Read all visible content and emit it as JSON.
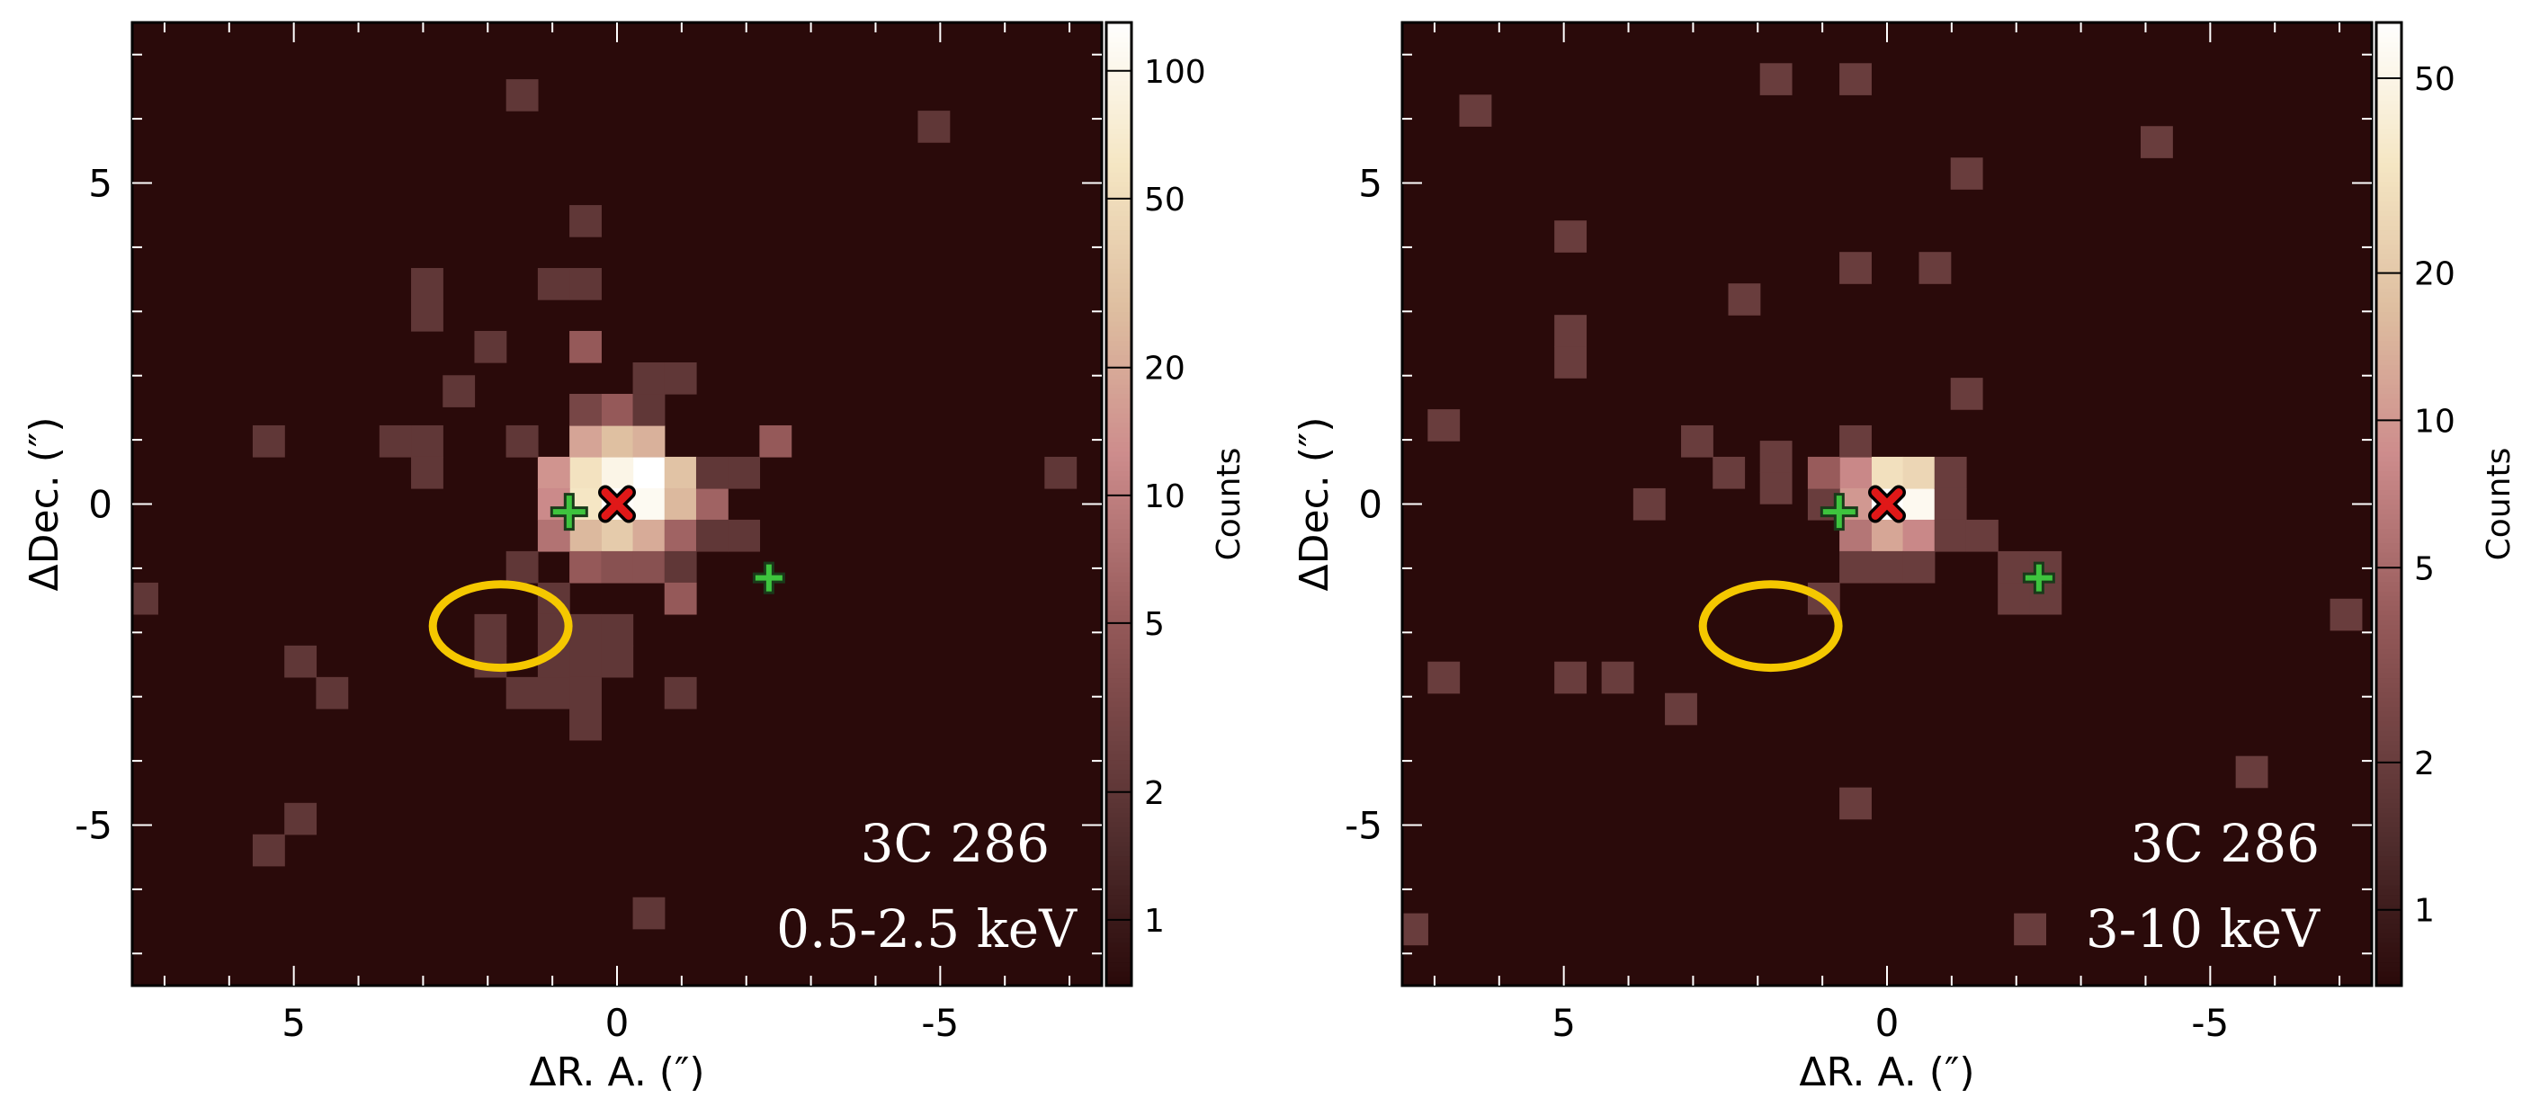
{
  "chart_data": [
    {
      "type": "heatmap",
      "title": "",
      "annotation": [
        "3C 286",
        "0.5-2.5 keV"
      ],
      "xlabel": "ΔR. A. (″)",
      "ylabel": "ΔDec. (″)",
      "xlim": [
        7.5,
        -7.5
      ],
      "ylim": [
        -7.5,
        7.5
      ],
      "xticks": [
        "5",
        "0",
        "-5"
      ],
      "yticks": [
        "5",
        "0",
        "-5"
      ],
      "pixel_size": 0.492,
      "colorbar": {
        "label": "Counts",
        "scale": "log",
        "ticks": [
          "1",
          "2",
          "5",
          "10",
          "20",
          "50",
          "100"
        ],
        "range": [
          0.7,
          130
        ]
      },
      "pixels": [
        [
          -0.49,
          0.49,
          130
        ],
        [
          0.0,
          0.49,
          95
        ],
        [
          -0.49,
          0.0,
          110
        ],
        [
          0.0,
          0.0,
          120
        ],
        [
          0.49,
          0.49,
          55
        ],
        [
          -0.98,
          0.49,
          30
        ],
        [
          0.49,
          0.0,
          60
        ],
        [
          -0.98,
          0.0,
          25
        ],
        [
          0.0,
          0.98,
          28
        ],
        [
          -0.49,
          0.98,
          22
        ],
        [
          0.49,
          0.98,
          18
        ],
        [
          0.98,
          0.49,
          14
        ],
        [
          0.0,
          -0.49,
          35
        ],
        [
          -0.49,
          -0.49,
          20
        ],
        [
          0.49,
          -0.49,
          25
        ],
        [
          0.98,
          0.0,
          12
        ],
        [
          -1.47,
          0.0,
          6
        ],
        [
          0.98,
          -0.49,
          8
        ],
        [
          -0.98,
          -0.49,
          6
        ],
        [
          0.49,
          -0.98,
          5
        ],
        [
          0.0,
          -0.98,
          4
        ],
        [
          -0.49,
          -0.98,
          4
        ],
        [
          0.0,
          1.47,
          5
        ],
        [
          0.49,
          1.47,
          3
        ],
        [
          -0.49,
          1.47,
          2
        ],
        [
          -0.49,
          1.96,
          2
        ],
        [
          -0.98,
          1.96,
          2
        ],
        [
          0.49,
          2.45,
          5
        ],
        [
          -2.45,
          0.98,
          5
        ],
        [
          -1.47,
          0.49,
          2
        ],
        [
          -1.47,
          -0.49,
          2
        ],
        [
          -1.96,
          -0.49,
          2
        ],
        [
          -1.96,
          0.49,
          2
        ],
        [
          -0.98,
          -0.98,
          2
        ],
        [
          -0.98,
          -1.47,
          5
        ],
        [
          0.49,
          -1.96,
          2
        ],
        [
          0.0,
          -1.96,
          2
        ],
        [
          0.0,
          -2.45,
          2
        ],
        [
          0.49,
          -2.45,
          2
        ],
        [
          0.98,
          -1.47,
          2
        ],
        [
          0.98,
          -1.96,
          2
        ],
        [
          0.98,
          -2.94,
          2
        ],
        [
          1.47,
          -0.98,
          2
        ],
        [
          1.47,
          0.98,
          2
        ],
        [
          0.49,
          3.43,
          2
        ],
        [
          0.98,
          3.43,
          2
        ],
        [
          0.49,
          4.41,
          2
        ],
        [
          1.96,
          2.45,
          2
        ],
        [
          2.94,
          3.43,
          2
        ],
        [
          2.94,
          2.94,
          2
        ],
        [
          2.45,
          1.76,
          2
        ],
        [
          1.47,
          0.98,
          2
        ],
        [
          2.94,
          0.98,
          2
        ],
        [
          3.43,
          0.98,
          2
        ],
        [
          2.94,
          0.49,
          2
        ],
        [
          5.39,
          0.98,
          2
        ],
        [
          1.96,
          -1.96,
          2
        ],
        [
          1.96,
          -2.45,
          2
        ],
        [
          1.47,
          -2.94,
          2
        ],
        [
          0.49,
          -2.94,
          2
        ],
        [
          0.98,
          -2.45,
          2
        ],
        [
          0.49,
          -3.43,
          2
        ],
        [
          -0.98,
          -2.94,
          2
        ],
        [
          4.9,
          -2.45,
          2
        ],
        [
          4.41,
          -2.94,
          2
        ],
        [
          4.9,
          -4.9,
          2
        ],
        [
          5.39,
          -5.39,
          2
        ],
        [
          7.35,
          -1.47,
          2
        ],
        [
          1.47,
          6.37,
          2
        ],
        [
          -4.9,
          5.88,
          2
        ],
        [
          -6.86,
          0.49,
          2
        ],
        [
          -0.49,
          -6.37,
          2
        ]
      ],
      "markers": {
        "red_x": [
          0.0,
          0.0
        ],
        "green_plus": [
          [
            0.74,
            -0.12
          ],
          [
            -2.35,
            -1.15
          ]
        ],
        "ellipse": {
          "center": [
            1.8,
            -1.9
          ],
          "rx": 1.05,
          "ry": 0.65,
          "color": "#f5c800"
        }
      }
    },
    {
      "type": "heatmap",
      "title": "",
      "annotation": [
        "3C 286",
        "3-10 keV"
      ],
      "xlabel": "ΔR. A. (″)",
      "ylabel": "ΔDec. (″)",
      "xlim": [
        7.5,
        -7.5
      ],
      "ylim": [
        -7.5,
        7.5
      ],
      "xticks": [
        "5",
        "0",
        "-5"
      ],
      "yticks": [
        "5",
        "0",
        "-5"
      ],
      "pixel_size": 0.492,
      "colorbar": {
        "label": "Counts",
        "scale": "log",
        "ticks": [
          "1",
          "2",
          "5",
          "10",
          "20",
          "50"
        ],
        "range": [
          0.7,
          65
        ]
      },
      "pixels": [
        [
          0.0,
          0.0,
          65
        ],
        [
          -0.49,
          0.0,
          55
        ],
        [
          0.0,
          0.49,
          30
        ],
        [
          -0.49,
          0.49,
          25
        ],
        [
          0.49,
          0.49,
          8
        ],
        [
          0.49,
          0.0,
          10
        ],
        [
          0.0,
          -0.49,
          12
        ],
        [
          -0.49,
          -0.49,
          8
        ],
        [
          0.49,
          -0.49,
          6
        ],
        [
          0.98,
          0.0,
          2
        ],
        [
          0.98,
          0.49,
          4
        ],
        [
          0.49,
          0.98,
          2
        ],
        [
          -0.98,
          0.49,
          2
        ],
        [
          -0.98,
          0.0,
          2
        ],
        [
          -0.98,
          -0.49,
          2
        ],
        [
          -1.47,
          -0.49,
          2
        ],
        [
          0.49,
          -0.98,
          2
        ],
        [
          0.0,
          -0.98,
          2
        ],
        [
          -0.49,
          -0.98,
          2
        ],
        [
          0.98,
          -1.47,
          2
        ],
        [
          -1.96,
          -1.47,
          2
        ],
        [
          -2.45,
          -1.47,
          2
        ],
        [
          -1.96,
          -0.98,
          2
        ],
        [
          -2.45,
          -0.98,
          2
        ],
        [
          1.72,
          0.74,
          2
        ],
        [
          1.72,
          0.25,
          2
        ],
        [
          2.94,
          0.98,
          2
        ],
        [
          2.45,
          0.49,
          2
        ],
        [
          3.68,
          0.0,
          2
        ],
        [
          6.86,
          1.23,
          2
        ],
        [
          0.49,
          3.68,
          2
        ],
        [
          -0.74,
          3.68,
          2
        ],
        [
          -1.23,
          5.15,
          2
        ],
        [
          2.21,
          3.19,
          2
        ],
        [
          4.9,
          2.7,
          2
        ],
        [
          4.9,
          2.21,
          2
        ],
        [
          4.9,
          4.17,
          2
        ],
        [
          6.37,
          6.13,
          2
        ],
        [
          1.72,
          6.62,
          2
        ],
        [
          0.49,
          6.62,
          2
        ],
        [
          -1.23,
          1.72,
          2
        ],
        [
          -4.17,
          5.64,
          2
        ],
        [
          -7.1,
          -1.72,
          2
        ],
        [
          -5.64,
          -4.17,
          2
        ],
        [
          4.17,
          -2.7,
          2
        ],
        [
          4.9,
          -2.7,
          2
        ],
        [
          3.19,
          -3.19,
          2
        ],
        [
          6.86,
          -2.7,
          2
        ],
        [
          0.49,
          -4.66,
          2
        ],
        [
          7.35,
          -6.62,
          2
        ],
        [
          -2.21,
          -6.62,
          2
        ]
      ],
      "markers": {
        "red_x": [
          0.0,
          0.0
        ],
        "green_plus": [
          [
            0.74,
            -0.12
          ],
          [
            -2.35,
            -1.15
          ]
        ],
        "ellipse": {
          "center": [
            1.8,
            -1.9
          ],
          "rx": 1.05,
          "ry": 0.65,
          "color": "#f5c800"
        }
      }
    }
  ]
}
